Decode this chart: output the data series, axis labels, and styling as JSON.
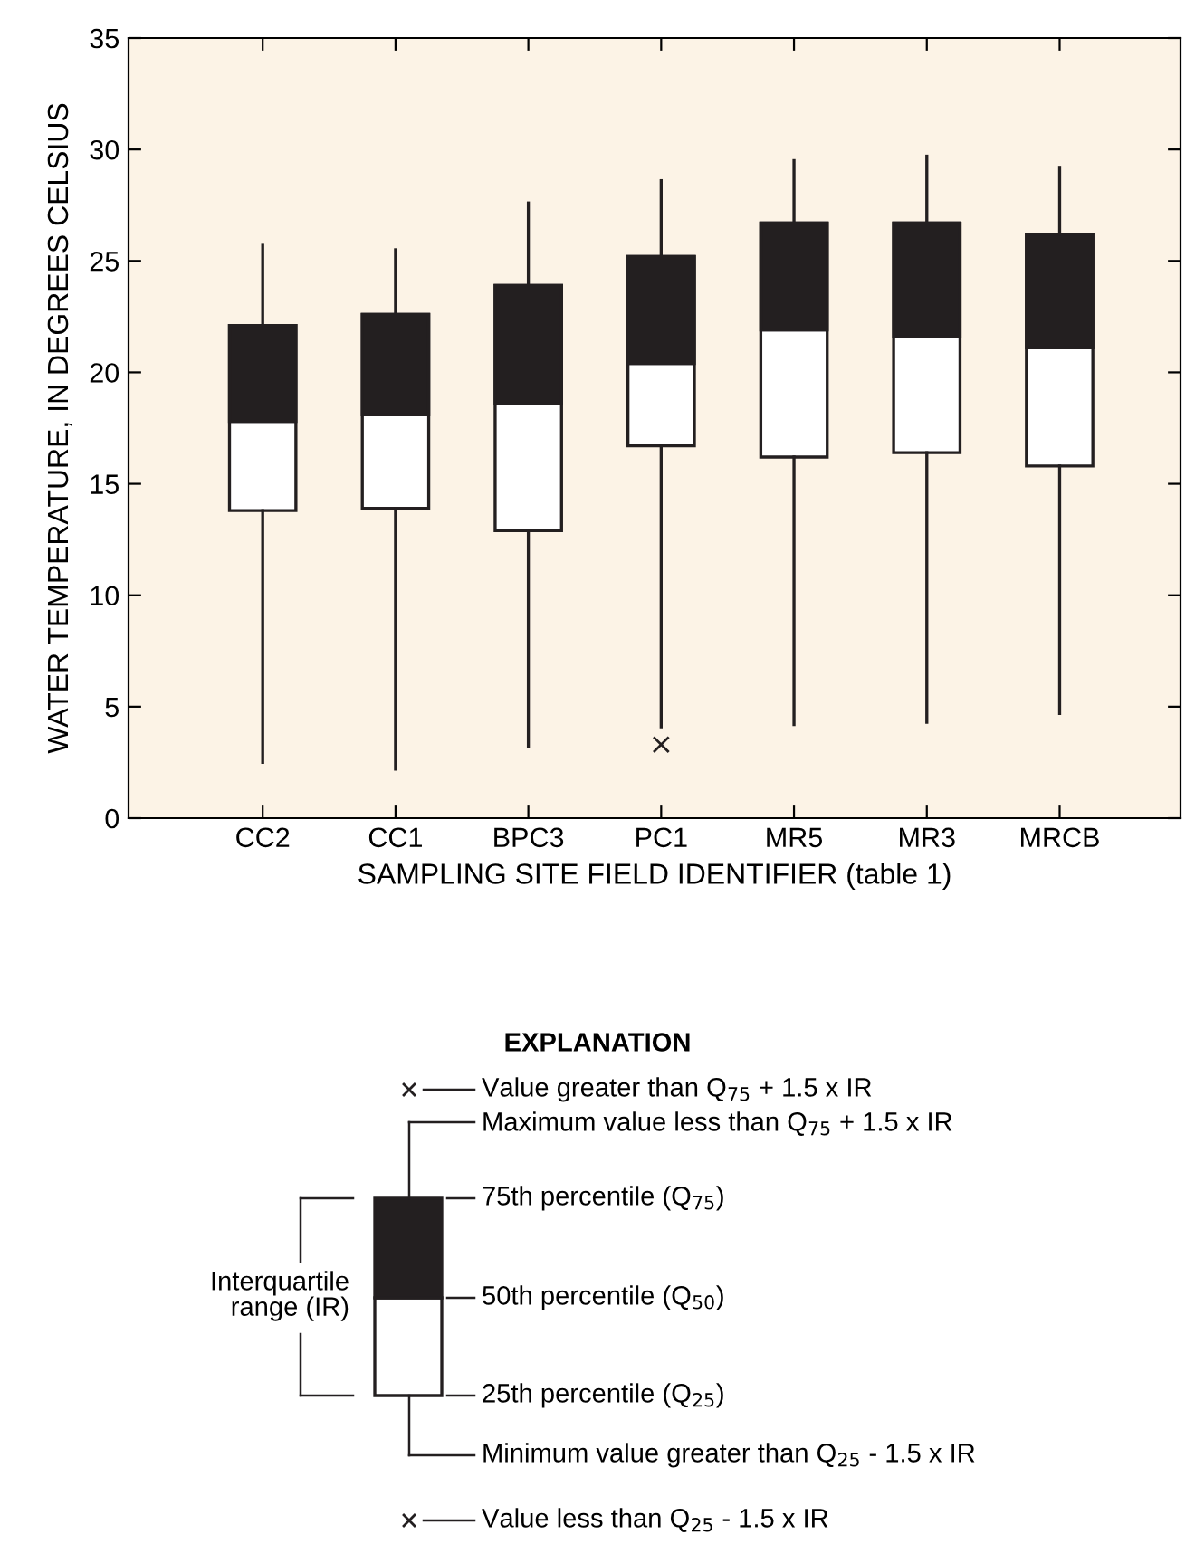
{
  "chart_data": {
    "type": "box",
    "xlabel": "SAMPLING SITE FIELD IDENTIFIER (table 1)",
    "ylabel": "WATER TEMPERATURE, IN DEGREES CELSIUS",
    "categories": [
      "CC2",
      "CC1",
      "BPC3",
      "PC1",
      "MR5",
      "MR3",
      "MRCB"
    ],
    "series": [
      {
        "color": "#231f20",
        "boxes": [
          {
            "low": 2.5,
            "q1": 13.8,
            "median": 17.8,
            "q3": 22.1,
            "high": 25.7
          },
          {
            "low": 2.2,
            "q1": 13.9,
            "median": 18.1,
            "q3": 22.6,
            "high": 25.5
          },
          {
            "low": 3.2,
            "q1": 12.9,
            "median": 18.6,
            "q3": 23.9,
            "high": 27.6
          },
          {
            "low": 4.1,
            "q1": 16.7,
            "median": 20.4,
            "q3": 25.2,
            "high": 28.6,
            "outliers": [
              3.3
            ]
          },
          {
            "low": 4.2,
            "q1": 16.2,
            "median": 21.9,
            "q3": 26.7,
            "high": 29.5
          },
          {
            "low": 4.3,
            "q1": 16.4,
            "median": 21.6,
            "q3": 26.7,
            "high": 29.7
          },
          {
            "low": 4.7,
            "q1": 15.8,
            "median": 21.1,
            "q3": 26.2,
            "high": 29.2
          }
        ]
      }
    ],
    "ylim": [
      0,
      35
    ],
    "yticks": [
      0,
      5,
      10,
      15,
      20,
      25,
      30,
      35
    ],
    "grid": false,
    "legend": false,
    "annotations": [
      "EXPLANATION",
      "Value greater than Q$_{75}$ + 1.5 x IR",
      "Maximum value less than Q$_{75}$ + 1.5 x IR",
      "75th percentile (Q$_{75}$)",
      "50th percentile (Q$_{50}$)",
      "25th percentile (Q$_{25}$)",
      "Minimum value greater than Q$_{25}$ - 1.5 x IR",
      "Value less than Q$_{25}$ - 1.5 x IR",
      "Interquartile\nrange (IR)"
    ]
  }
}
